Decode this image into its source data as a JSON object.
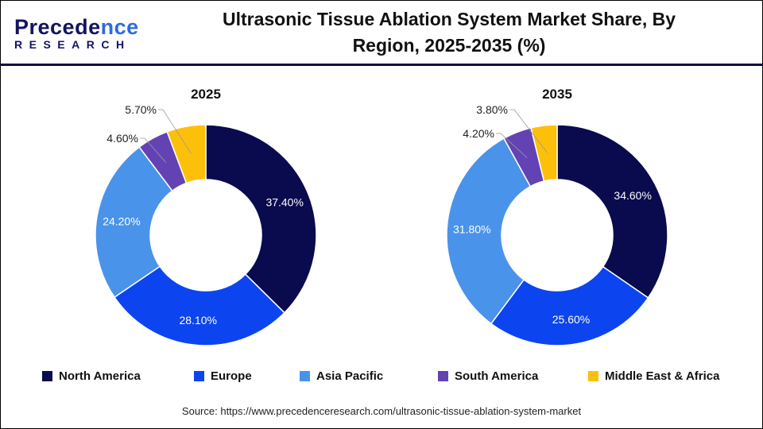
{
  "logo": {
    "line1_a": "P",
    "line1_b": "recede",
    "line1_c": "nce",
    "line2": "RESEARCH"
  },
  "title": "Ultrasonic Tissue Ablation System Market Share, By Region, 2025-2035 (%)",
  "chart_data": [
    {
      "type": "pie",
      "subtype": "donut",
      "title": "2025",
      "categories": [
        "North America",
        "Europe",
        "Asia Pacific",
        "South America",
        "Middle East & Africa"
      ],
      "values": [
        37.4,
        28.1,
        24.2,
        4.6,
        5.7
      ],
      "labels": [
        "37.40%",
        "28.10%",
        "24.20%",
        "4.60%",
        "5.70%"
      ]
    },
    {
      "type": "pie",
      "subtype": "donut",
      "title": "2035",
      "categories": [
        "North America",
        "Europe",
        "Asia Pacific",
        "South America",
        "Middle East & Africa"
      ],
      "values": [
        34.6,
        25.6,
        31.8,
        4.2,
        3.8
      ],
      "labels": [
        "34.60%",
        "25.60%",
        "31.80%",
        "4.20%",
        "3.80%"
      ]
    }
  ],
  "colors": [
    "#0a0a4e",
    "#0c45f0",
    "#4a93ea",
    "#6343b3",
    "#fdc00a"
  ],
  "legend": [
    "North America",
    "Europe",
    "Asia Pacific",
    "South America",
    "Middle East & Africa"
  ],
  "source": "Source: https://www.precedenceresearch.com/ultrasonic-tissue-ablation-system-market"
}
